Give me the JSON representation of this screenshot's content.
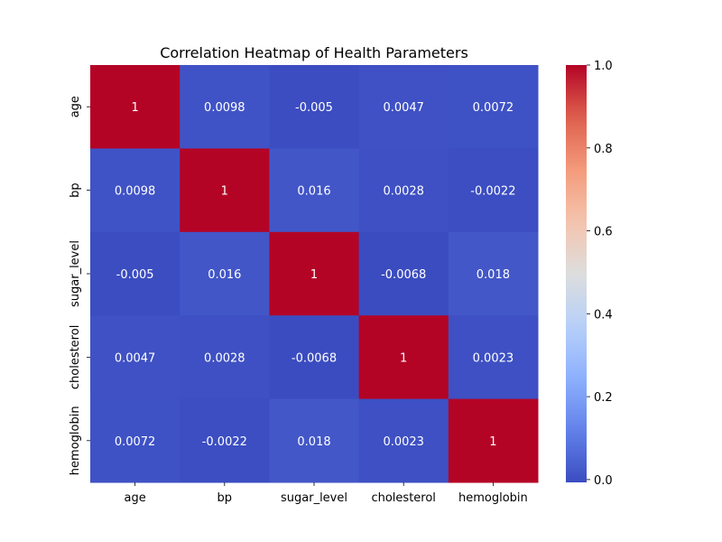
{
  "chart_data": {
    "type": "heatmap",
    "title": "Correlation Heatmap of Health Parameters",
    "xlabel": "",
    "ylabel": "",
    "x_categories": [
      "age",
      "bp",
      "sugar_level",
      "cholesterol",
      "hemoglobin"
    ],
    "y_categories": [
      "age",
      "bp",
      "sugar_level",
      "cholesterol",
      "hemoglobin"
    ],
    "values": [
      [
        1,
        0.0098,
        -0.005,
        0.0047,
        0.0072
      ],
      [
        0.0098,
        1,
        0.016,
        0.0028,
        -0.0022
      ],
      [
        -0.005,
        0.016,
        1,
        -0.0068,
        0.018
      ],
      [
        0.0047,
        0.0028,
        -0.0068,
        1,
        0.0023
      ],
      [
        0.0072,
        -0.0022,
        0.018,
        0.0023,
        1
      ]
    ],
    "cell_labels": [
      [
        "1",
        "0.0098",
        "-0.005",
        "0.0047",
        "0.0072"
      ],
      [
        "0.0098",
        "1",
        "0.016",
        "0.0028",
        "-0.0022"
      ],
      [
        "-0.005",
        "0.016",
        "1",
        "-0.0068",
        "0.018"
      ],
      [
        "0.0047",
        "0.0028",
        "-0.0068",
        "1",
        "0.0023"
      ],
      [
        "0.0072",
        "-0.0022",
        "0.018",
        "0.0023",
        "1"
      ]
    ],
    "colormap": "coolwarm",
    "colorbar": {
      "range": [
        -0.0068,
        1.0
      ],
      "ticks": [
        0.0,
        0.2,
        0.4,
        0.6,
        0.8,
        1.0
      ],
      "tick_labels": [
        "0.0",
        "0.2",
        "0.4",
        "0.6",
        "0.8",
        "1.0"
      ]
    },
    "grid": false
  }
}
